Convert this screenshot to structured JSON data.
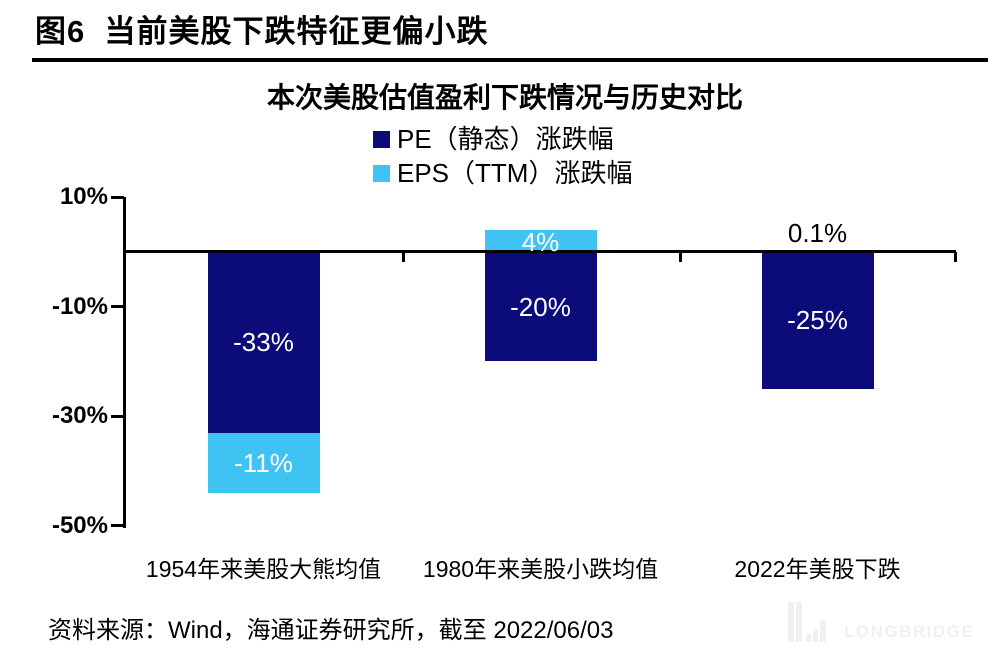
{
  "figure": {
    "title": "图6  当前美股下跌特征更偏小跌"
  },
  "chart": {
    "title": "本次美股估值盈利下跌情况与历史对比"
  },
  "chart_data": {
    "type": "bar",
    "stacked": true,
    "title": "本次美股估值盈利下跌情况与历史对比",
    "categories": [
      "1954年来美股大熊均值",
      "1980年来美股小跌均值",
      "2022年美股下跌"
    ],
    "series": [
      {
        "name": "PE（静态）涨跌幅",
        "color": "#0b0b7a",
        "values": [
          -33,
          -20,
          -25
        ],
        "labels": [
          "-33%",
          "-20%",
          "-25%"
        ]
      },
      {
        "name": "EPS（TTM）涨跌幅",
        "color": "#3fc3f3",
        "values": [
          -11,
          4,
          0.1
        ],
        "labels": [
          "-11%",
          "4%",
          "0.1%"
        ]
      }
    ],
    "ylim": [
      -50,
      10
    ],
    "yticks": [
      {
        "value": 10,
        "label": "10%"
      },
      {
        "value": -10,
        "label": "-10%"
      },
      {
        "value": -30,
        "label": "-30%"
      },
      {
        "value": -50,
        "label": "-50%"
      }
    ],
    "grid": false,
    "legend_position": "top-center",
    "value_label_color_on_bar": "#ffffff",
    "value_label_color_off_bar": "#000000"
  },
  "footer": {
    "source": "资料来源：Wind，海通证券研究所，截至 2022/06/03"
  },
  "watermark": {
    "text": "LONGBRIDGE",
    "color": "#eff0f2"
  }
}
